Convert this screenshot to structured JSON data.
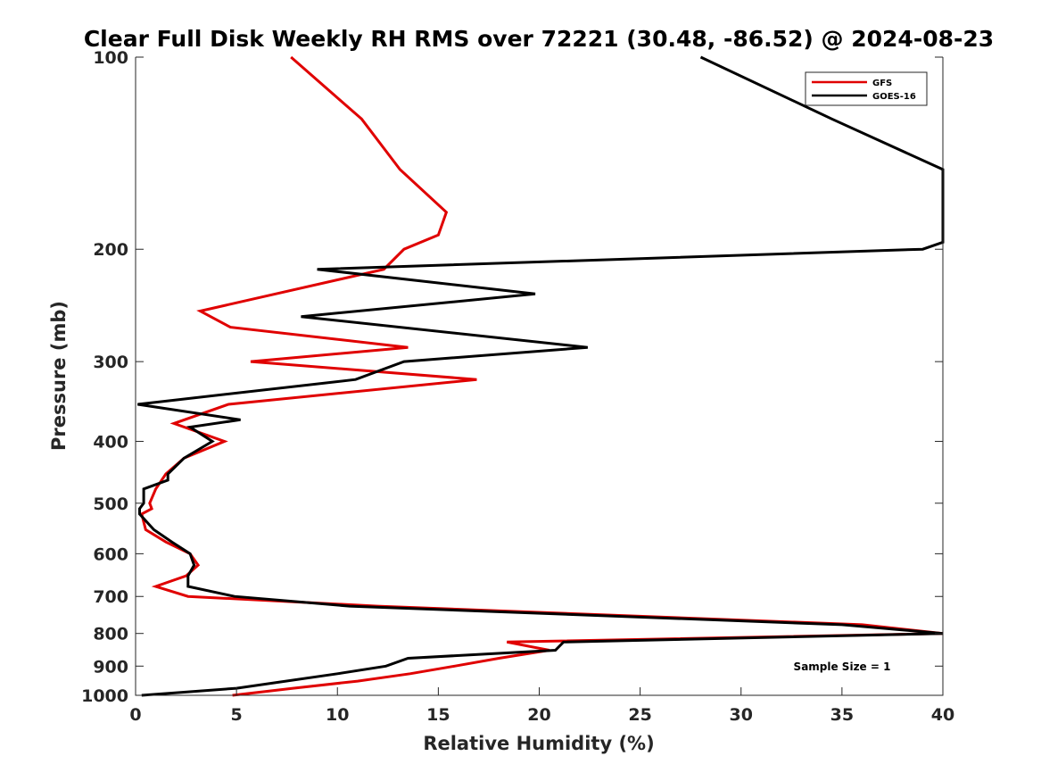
{
  "chart_data": {
    "type": "line",
    "title": "Clear Full Disk Weekly RH RMS over 72221 (30.48, -86.52) @ 2024-08-23",
    "xlabel": "Relative Humidity (%)",
    "ylabel": "Pressure (mb)",
    "xlim": [
      0,
      40
    ],
    "ylim": [
      100,
      1000
    ],
    "y_scale": "log",
    "y_reversed": true,
    "x_ticks": [
      "0",
      "5",
      "10",
      "15",
      "20",
      "25",
      "30",
      "35",
      "40"
    ],
    "y_ticks": [
      "100",
      "200",
      "300",
      "400",
      "500",
      "600",
      "700",
      "800",
      "900",
      "1000"
    ],
    "grid": false,
    "legend_position": "top-right",
    "annotation": "Sample Size = 1",
    "series": [
      {
        "name": "GFS",
        "color": "#e00000",
        "points": [
          [
            7.7,
            100
          ],
          [
            11.2,
            125
          ],
          [
            13.1,
            150
          ],
          [
            15.4,
            175
          ],
          [
            15.0,
            190
          ],
          [
            13.3,
            200
          ],
          [
            12.3,
            215
          ],
          [
            3.2,
            250
          ],
          [
            4.7,
            265
          ],
          [
            13.5,
            285
          ],
          [
            5.7,
            300
          ],
          [
            16.9,
            320
          ],
          [
            4.6,
            350
          ],
          [
            1.9,
            375
          ],
          [
            4.4,
            400
          ],
          [
            2.4,
            425
          ],
          [
            1.5,
            450
          ],
          [
            1.0,
            475
          ],
          [
            0.7,
            500
          ],
          [
            0.8,
            510
          ],
          [
            0.3,
            520
          ],
          [
            0.5,
            550
          ],
          [
            1.5,
            575
          ],
          [
            2.7,
            600
          ],
          [
            3.1,
            625
          ],
          [
            2.5,
            650
          ],
          [
            1.0,
            675
          ],
          [
            2.6,
            700
          ],
          [
            12.0,
            725
          ],
          [
            36.0,
            775
          ],
          [
            40.0,
            800
          ],
          [
            18.4,
            825
          ],
          [
            20.5,
            850
          ],
          [
            18.0,
            875
          ],
          [
            15.8,
            900
          ],
          [
            13.6,
            925
          ],
          [
            11.0,
            950
          ],
          [
            7.8,
            975
          ],
          [
            4.8,
            1000
          ]
        ]
      },
      {
        "name": "GOES-16",
        "color": "#000000",
        "points": [
          [
            28.0,
            100
          ],
          [
            34.5,
            125
          ],
          [
            40.0,
            150
          ],
          [
            40.0,
            195
          ],
          [
            39.0,
            200
          ],
          [
            9.0,
            215
          ],
          [
            19.8,
            235
          ],
          [
            8.2,
            255
          ],
          [
            22.4,
            285
          ],
          [
            13.3,
            300
          ],
          [
            10.9,
            320
          ],
          [
            0.1,
            350
          ],
          [
            5.2,
            370
          ],
          [
            2.7,
            380
          ],
          [
            3.8,
            400
          ],
          [
            2.4,
            425
          ],
          [
            1.6,
            450
          ],
          [
            1.6,
            460
          ],
          [
            0.4,
            475
          ],
          [
            0.4,
            500
          ],
          [
            0.2,
            510
          ],
          [
            0.2,
            520
          ],
          [
            0.9,
            550
          ],
          [
            1.8,
            575
          ],
          [
            2.7,
            600
          ],
          [
            2.9,
            625
          ],
          [
            2.6,
            650
          ],
          [
            2.6,
            675
          ],
          [
            4.9,
            700
          ],
          [
            10.6,
            725
          ],
          [
            35.0,
            775
          ],
          [
            40.0,
            800
          ],
          [
            21.2,
            825
          ],
          [
            20.8,
            850
          ],
          [
            13.5,
            875
          ],
          [
            12.4,
            900
          ],
          [
            10.0,
            925
          ],
          [
            5.0,
            975
          ],
          [
            0.3,
            1000
          ]
        ]
      }
    ]
  }
}
